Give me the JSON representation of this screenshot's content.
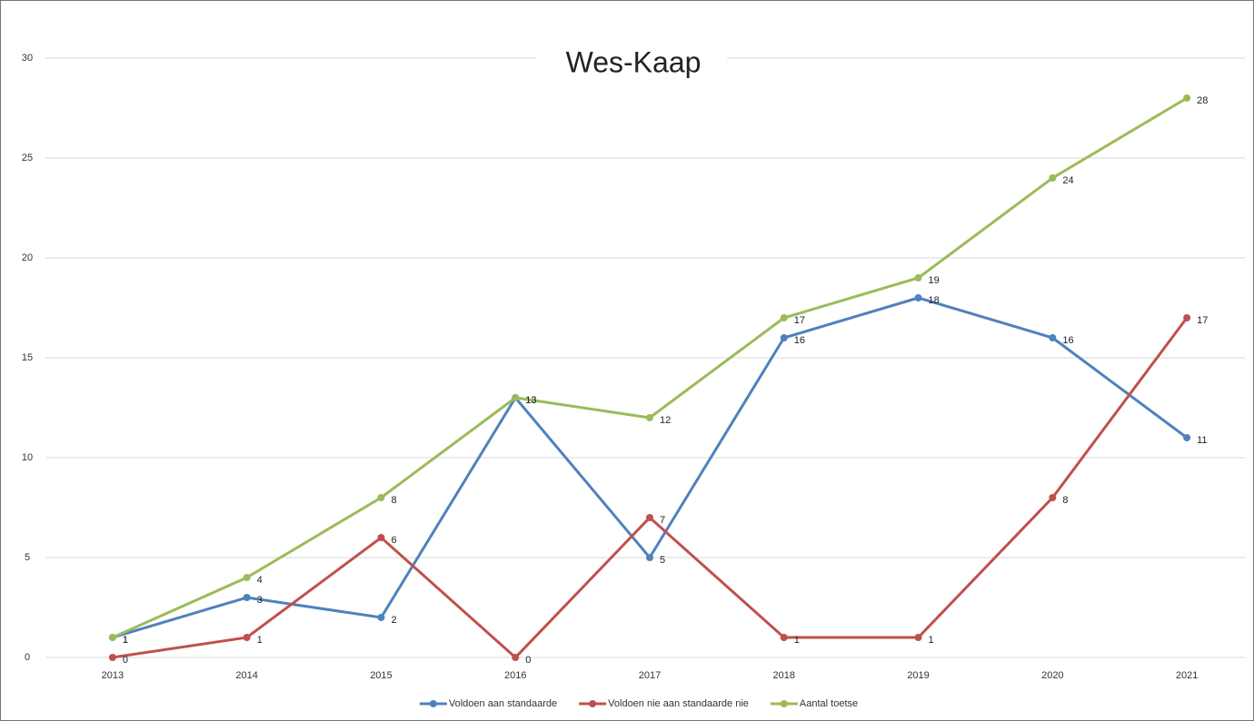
{
  "chart_data": {
    "type": "line",
    "title": "Wes-Kaap",
    "categories": [
      "2013",
      "2014",
      "2015",
      "2016",
      "2017",
      "2018",
      "2019",
      "2020",
      "2021"
    ],
    "series": [
      {
        "name": "Voldoen aan standaarde",
        "color": "#4f81bd",
        "values": [
          1,
          3,
          2,
          13,
          5,
          16,
          18,
          16,
          11
        ]
      },
      {
        "name": "Voldoen nie aan standaarde nie",
        "color": "#c0504d",
        "values": [
          0,
          1,
          6,
          0,
          7,
          1,
          1,
          8,
          17
        ]
      },
      {
        "name": "Aantal toetse",
        "color": "#9bbb59",
        "values": [
          1,
          4,
          8,
          13,
          12,
          17,
          19,
          24,
          28
        ]
      }
    ],
    "ylim": [
      0,
      30
    ],
    "yticks": [
      0,
      5,
      10,
      15,
      20,
      25,
      30
    ],
    "grid": true,
    "legend": "bottom"
  }
}
